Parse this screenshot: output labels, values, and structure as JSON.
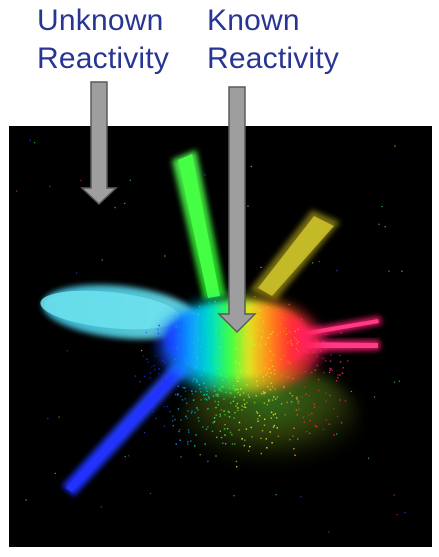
{
  "annotations": {
    "unknown": {
      "line1": "Unknown",
      "line2": "Reactivity"
    },
    "known": {
      "line1": "Known",
      "line2": "Reactivity"
    }
  },
  "colors": {
    "label_text": "#283593",
    "panel_background": "#000000",
    "arrow_fill": "#9e9e9e",
    "arrow_stroke": "#5a5a5a",
    "cloud_cyan": "#4fd8e8",
    "cloud_green": "#33ff33",
    "cloud_yellow": "#e0d020",
    "cloud_red": "#ff3b30",
    "cloud_magenta": "#ff1a6e",
    "cloud_blue": "#1a2cff"
  },
  "icons": [
    "down-arrow-icon",
    "down-arrow-icon"
  ]
}
